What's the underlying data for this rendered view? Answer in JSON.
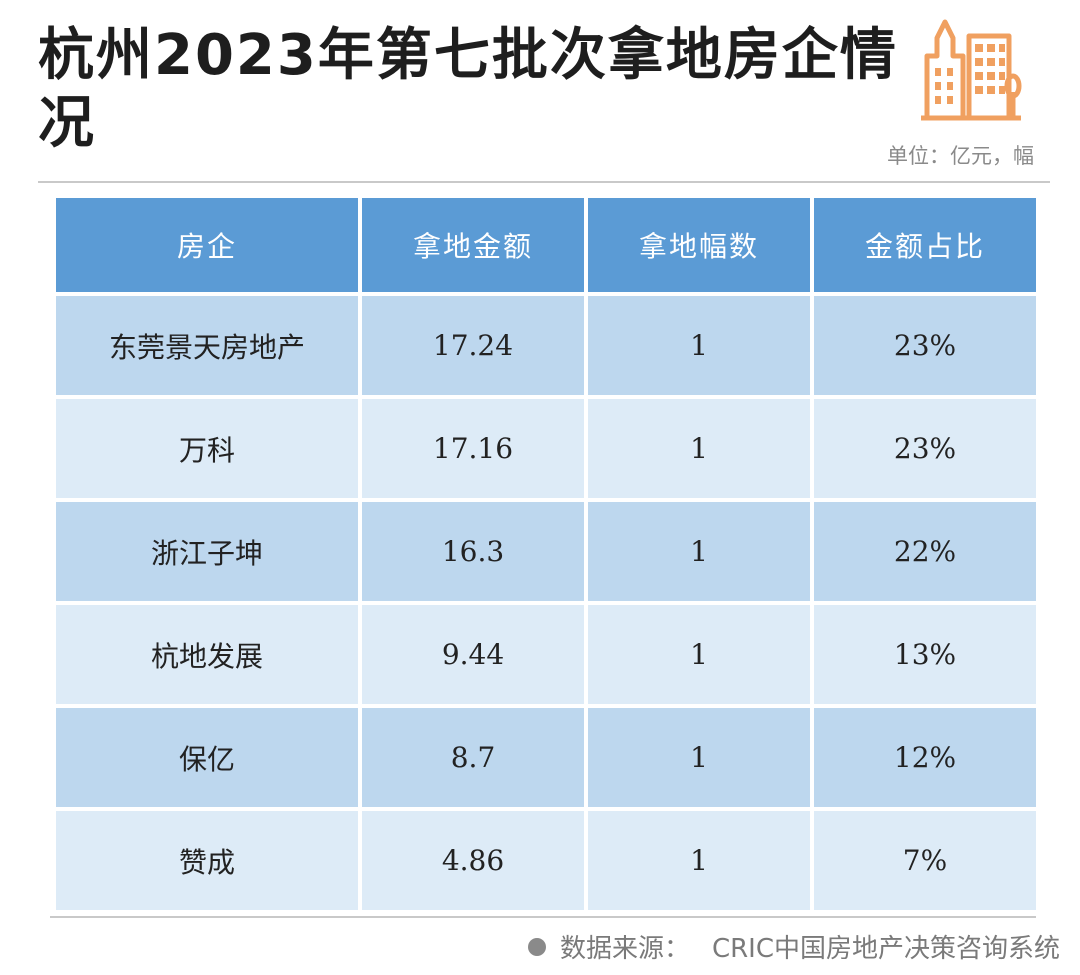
{
  "title": "杭州2023年第七批次拿地房企情况",
  "unit": "单位：亿元，幅",
  "table": {
    "headers": [
      "房企",
      "拿地金额",
      "拿地幅数",
      "金额占比"
    ],
    "rows": [
      [
        "东莞景天房地产",
        "17.24",
        "1",
        "23%"
      ],
      [
        "万科",
        "17.16",
        "1",
        "23%"
      ],
      [
        "浙江子坤",
        "16.3",
        "1",
        "22%"
      ],
      [
        "杭地发展",
        "9.44",
        "1",
        "13%"
      ],
      [
        "保亿",
        "8.7",
        "1",
        "12%"
      ],
      [
        "赞成",
        "4.86",
        "1",
        "7%"
      ]
    ]
  },
  "source": {
    "label": "数据来源：",
    "value": "CRIC中国房地产决策咨询系统"
  },
  "colors": {
    "header_bg": "#5b9bd5",
    "row_dark": "#bdd7ee",
    "row_light": "#ddebf7",
    "logo_orange": "#f0a060"
  },
  "icons": {
    "logo": "buildings-icon"
  }
}
